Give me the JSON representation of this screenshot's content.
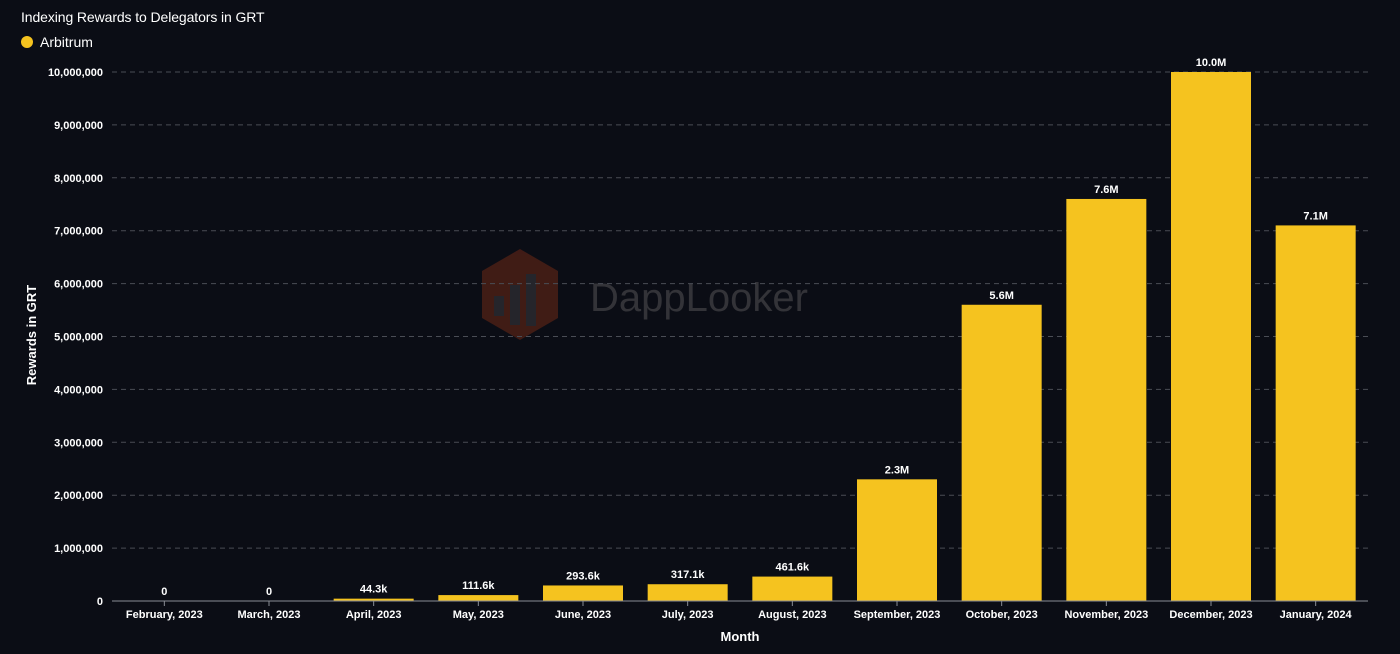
{
  "chart_data": {
    "type": "bar",
    "title": "Indexing Rewards to Delegators in GRT",
    "xlabel": "Month",
    "ylabel": "Rewards in GRT",
    "ylim": [
      0,
      10000000
    ],
    "yticks": [
      0,
      1000000,
      2000000,
      3000000,
      4000000,
      5000000,
      6000000,
      7000000,
      8000000,
      9000000,
      10000000
    ],
    "ytick_labels": [
      "0",
      "1,000,000",
      "2,000,000",
      "3,000,000",
      "4,000,000",
      "5,000,000",
      "6,000,000",
      "7,000,000",
      "8,000,000",
      "9,000,000",
      "10,000,000"
    ],
    "grid": true,
    "legend_position": "top-left",
    "categories": [
      "February, 2023",
      "March, 2023",
      "April, 2023",
      "May, 2023",
      "June, 2023",
      "July, 2023",
      "August, 2023",
      "September, 2023",
      "October, 2023",
      "November, 2023",
      "December, 2023",
      "January, 2024"
    ],
    "series": [
      {
        "name": "Arbitrum",
        "color": "#f5c31f",
        "values": [
          0,
          0,
          44300,
          111600,
          293600,
          317100,
          461600,
          2300000,
          5600000,
          7600000,
          10000000,
          7100000
        ],
        "labels": [
          "0",
          "0",
          "44.3k",
          "111.6k",
          "293.6k",
          "317.1k",
          "461.6k",
          "2.3M",
          "5.6M",
          "7.6M",
          "10.0M",
          "7.1M"
        ]
      }
    ]
  },
  "watermark": {
    "text": "DappLooker",
    "icon": "dapplooker-logo-icon"
  },
  "colors": {
    "background": "#0b0d15",
    "grid": "#4a4d55",
    "axis": "#8a8d95"
  }
}
